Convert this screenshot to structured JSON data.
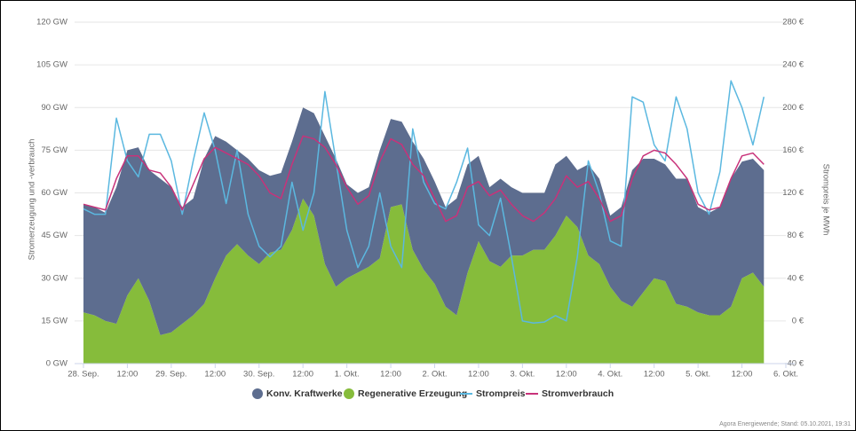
{
  "chart_data": {
    "type": "stacked-area-line",
    "y_label": "Stromerzeugung und -verbrauch",
    "y2_label": "Strompreis je MWh",
    "source": "Agora Energiewende; Stand: 05.10.2021, 19:31",
    "categories": [
      "28. Sep.",
      null,
      null,
      null,
      "12:00",
      null,
      null,
      null,
      "29. Sep.",
      null,
      null,
      null,
      "12:00",
      null,
      null,
      null,
      "30. Sep.",
      null,
      null,
      null,
      "12:00",
      null,
      null,
      null,
      "1. Okt.",
      null,
      null,
      null,
      "12:00",
      null,
      null,
      null,
      "2. Okt.",
      null,
      null,
      null,
      "12:00",
      null,
      null,
      null,
      "3. Okt.",
      null,
      null,
      null,
      "12:00",
      null,
      null,
      null,
      "4. Okt.",
      null,
      null,
      null,
      "12:00",
      null,
      null,
      null,
      "5. Okt.",
      null,
      null,
      null,
      "12:00",
      null,
      null,
      null,
      "6. Okt."
    ],
    "series": [
      {
        "name": "Konv. Kraftwerke",
        "kind": "area",
        "color": "#5d6d8f",
        "values": [
          38,
          38,
          38,
          48,
          51,
          46,
          46,
          55,
          51,
          41,
          41,
          51,
          50,
          40,
          33,
          34,
          33,
          27,
          27,
          31,
          32,
          36,
          45,
          45,
          33,
          28,
          28,
          38,
          31,
          29,
          38,
          39,
          36,
          35,
          41,
          38,
          30,
          26,
          31,
          24,
          22,
          20,
          20,
          25,
          21,
          20,
          32,
          30,
          25,
          33,
          48,
          47,
          42,
          41,
          44,
          45,
          37,
          36,
          38,
          45,
          41,
          40,
          41,
          null,
          null
        ]
      },
      {
        "name": "Regenerative Erzeugung",
        "kind": "area",
        "color": "#86bc3b",
        "values": [
          18,
          17,
          15,
          14,
          24,
          30,
          22,
          10,
          11,
          14,
          17,
          21,
          30,
          38,
          42,
          38,
          35,
          39,
          40,
          47,
          58,
          52,
          35,
          27,
          30,
          32,
          34,
          37,
          55,
          56,
          40,
          33,
          28,
          20,
          17,
          32,
          43,
          36,
          34,
          38,
          38,
          40,
          40,
          45,
          52,
          48,
          38,
          35,
          27,
          22,
          20,
          25,
          30,
          29,
          21,
          20,
          18,
          17,
          17,
          20,
          30,
          32,
          27,
          null,
          null
        ]
      },
      {
        "name": "Strompreis",
        "kind": "line",
        "axis": "y2",
        "color": "#5bb8e0",
        "values": [
          105,
          100,
          100,
          190,
          150,
          135,
          175,
          175,
          150,
          100,
          150,
          195,
          160,
          110,
          160,
          100,
          70,
          60,
          70,
          130,
          85,
          120,
          215,
          150,
          85,
          50,
          70,
          120,
          70,
          50,
          180,
          130,
          110,
          105,
          130,
          162,
          90,
          80,
          115,
          60,
          0,
          -2,
          -1,
          5,
          0,
          60,
          150,
          120,
          75,
          70,
          210,
          205,
          165,
          150,
          210,
          180,
          120,
          100,
          140,
          225,
          200,
          165,
          210,
          null,
          null
        ]
      },
      {
        "name": "Stromverbrauch",
        "kind": "line",
        "color": "#c8327a",
        "values": [
          56,
          55,
          54,
          65,
          73,
          73,
          68,
          67,
          62,
          54,
          63,
          72,
          76,
          74,
          72,
          70,
          66,
          60,
          58,
          70,
          80,
          79,
          76,
          70,
          62,
          56,
          59,
          71,
          79,
          77,
          70,
          66,
          58,
          50,
          52,
          62,
          64,
          59,
          61,
          56,
          52,
          50,
          53,
          58,
          66,
          62,
          64,
          58,
          50,
          52,
          65,
          73,
          75,
          74,
          70,
          65,
          56,
          54,
          55,
          65,
          73,
          74,
          70,
          null,
          null
        ]
      }
    ],
    "ylim": [
      0,
      120
    ],
    "yticks": [
      {
        "value": 0,
        "label": "0 GW"
      },
      {
        "value": 15,
        "label": "15 GW"
      },
      {
        "value": 30,
        "label": "30 GW"
      },
      {
        "value": 45,
        "label": "45 GW"
      },
      {
        "value": 60,
        "label": "60 GW"
      },
      {
        "value": 75,
        "label": "75 GW"
      },
      {
        "value": 90,
        "label": "90 GW"
      },
      {
        "value": 105,
        "label": "105 GW"
      },
      {
        "value": 120,
        "label": "120 GW"
      }
    ],
    "y2lim": [
      -40,
      280
    ],
    "y2ticks": [
      {
        "value": -40,
        "label": "-40 €"
      },
      {
        "value": 0,
        "label": "0 €"
      },
      {
        "value": 40,
        "label": "40 €"
      },
      {
        "value": 80,
        "label": "80 €"
      },
      {
        "value": 120,
        "label": "120 €"
      },
      {
        "value": 160,
        "label": "160 €"
      },
      {
        "value": 200,
        "label": "200 €"
      },
      {
        "value": 240,
        "label": "240 €"
      },
      {
        "value": 280,
        "label": "280 €"
      }
    ],
    "grid": true
  }
}
